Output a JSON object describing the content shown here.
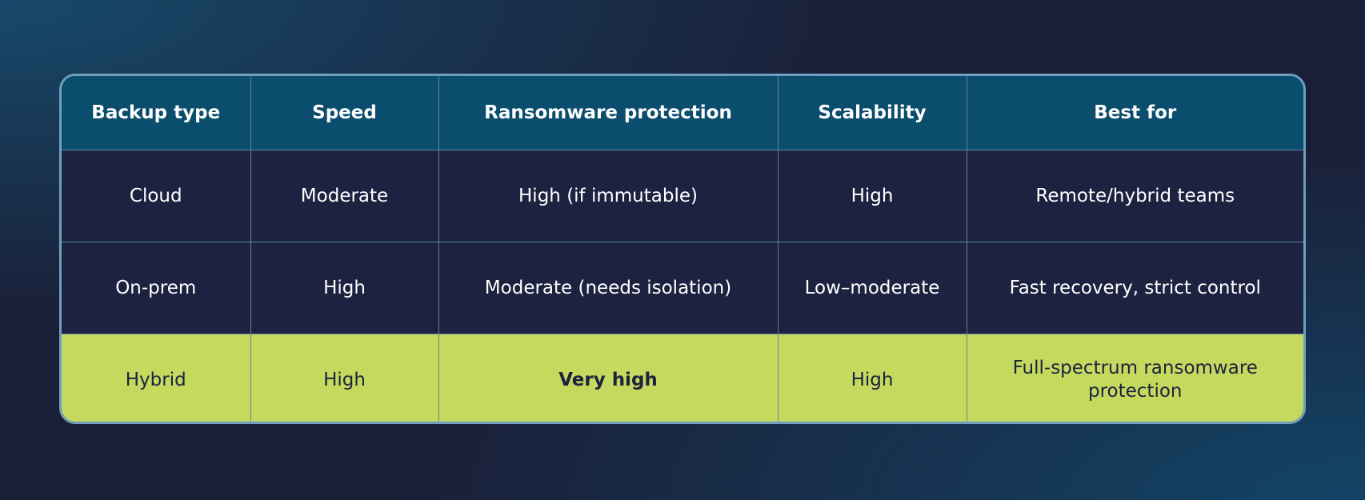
{
  "table": {
    "header": [
      "Backup type",
      "Speed",
      "Ransomware protection",
      "Scalability",
      "Best for"
    ],
    "rows": [
      [
        "Cloud",
        "Moderate",
        "High (if immutable)",
        "High",
        "Remote/hybrid teams"
      ],
      [
        "On-prem",
        "High",
        "Moderate (needs isolation)",
        "Low–moderate",
        "Fast recovery, strict control"
      ],
      [
        "Hybrid",
        "High",
        "Very high",
        "High",
        "Full-spectrum ransomware protection"
      ]
    ]
  }
}
